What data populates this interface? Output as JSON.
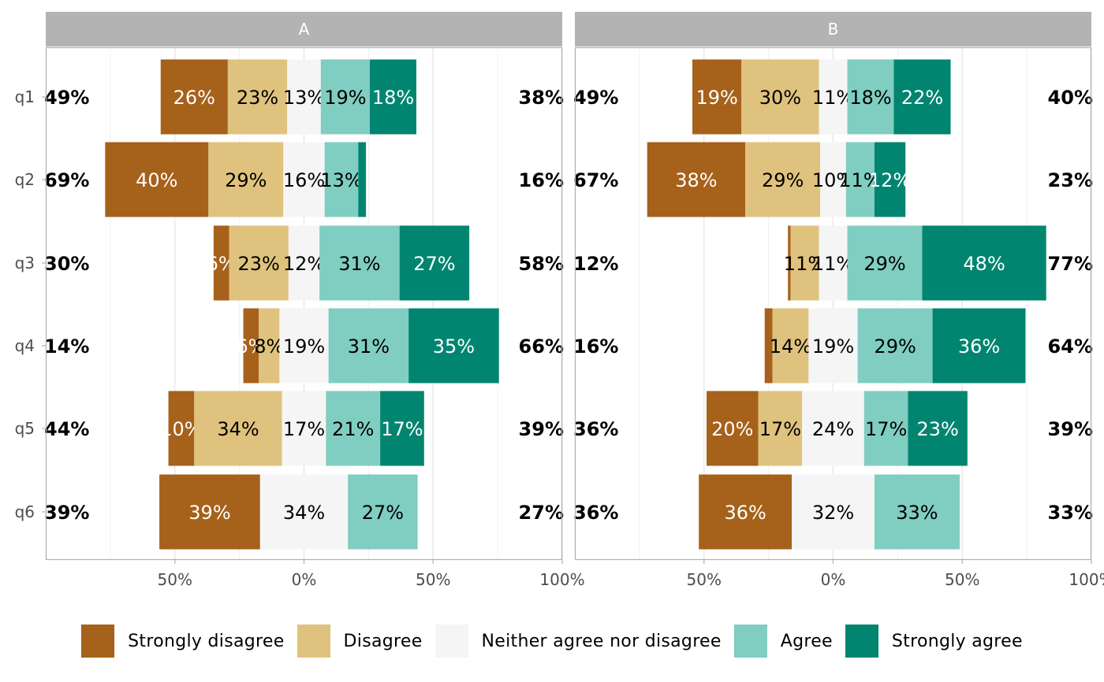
{
  "chart_data": {
    "type": "bar",
    "subtype": "diverging-stacked-likert",
    "levels": [
      "Strongly disagree",
      "Disagree",
      "Neither agree nor disagree",
      "Agree",
      "Strongly agree"
    ],
    "colors": [
      "#A6611A",
      "#DFC27D",
      "#F5F5F5",
      "#80CDC1",
      "#018571"
    ],
    "label_text_colors": [
      "#ffffff",
      "#000000",
      "#000000",
      "#000000",
      "#ffffff"
    ],
    "x_ticks": [
      "50%",
      "0%",
      "50%",
      "100%"
    ],
    "xlim": [
      -100,
      100
    ],
    "grid": true,
    "legend_position": "bottom",
    "panels": [
      {
        "name": "A",
        "rows": [
          {
            "question": "q1",
            "values": [
              26,
              23,
              13,
              19,
              18
            ],
            "labels": [
              "26%",
              "23%",
              "13%",
              "19%",
              "18%"
            ],
            "left_total": "49%",
            "right_total": "38%"
          },
          {
            "question": "q2",
            "values": [
              40,
              29,
              16,
              13,
              3
            ],
            "labels": [
              "40%",
              "29%",
              "16%",
              "13%",
              ""
            ],
            "left_total": "69%",
            "right_total": "16%"
          },
          {
            "question": "q3",
            "values": [
              6,
              23,
              12,
              31,
              27
            ],
            "labels": [
              "6%",
              "23%",
              "12%",
              "31%",
              "27%"
            ],
            "left_total": "30%",
            "right_total": "58%"
          },
          {
            "question": "q4",
            "values": [
              6,
              8,
              19,
              31,
              35
            ],
            "labels": [
              "6%",
              "8%",
              "19%",
              "31%",
              "35%"
            ],
            "left_total": "14%",
            "right_total": "66%"
          },
          {
            "question": "q5",
            "values": [
              10,
              34,
              17,
              21,
              17
            ],
            "labels": [
              "10%",
              "34%",
              "17%",
              "21%",
              "17%"
            ],
            "left_total": "44%",
            "right_total": "39%"
          },
          {
            "question": "q6",
            "values": [
              39,
              0,
              34,
              27,
              0
            ],
            "labels": [
              "39%",
              "",
              "34%",
              "27%",
              ""
            ],
            "left_total": "39%",
            "right_total": "27%"
          }
        ]
      },
      {
        "name": "B",
        "rows": [
          {
            "question": "q1",
            "values": [
              19,
              30,
              11,
              18,
              22
            ],
            "labels": [
              "19%",
              "30%",
              "11%",
              "18%",
              "22%"
            ],
            "left_total": "49%",
            "right_total": "40%"
          },
          {
            "question": "q2",
            "values": [
              38,
              29,
              10,
              11,
              12
            ],
            "labels": [
              "38%",
              "29%",
              "10%",
              "11%",
              "12%"
            ],
            "left_total": "67%",
            "right_total": "23%"
          },
          {
            "question": "q3",
            "values": [
              1,
              11,
              11,
              29,
              48
            ],
            "labels": [
              "",
              "11%",
              "11%",
              "29%",
              "48%"
            ],
            "left_total": "12%",
            "right_total": "77%"
          },
          {
            "question": "q4",
            "values": [
              3,
              14,
              19,
              29,
              36
            ],
            "labels": [
              "",
              "14%",
              "19%",
              "29%",
              "36%"
            ],
            "left_total": "16%",
            "right_total": "64%"
          },
          {
            "question": "q5",
            "values": [
              20,
              17,
              24,
              17,
              23
            ],
            "labels": [
              "20%",
              "17%",
              "24%",
              "17%",
              "23%"
            ],
            "left_total": "36%",
            "right_total": "39%"
          },
          {
            "question": "q6",
            "values": [
              36,
              0,
              32,
              33,
              0
            ],
            "labels": [
              "36%",
              "",
              "32%",
              "33%",
              ""
            ],
            "left_total": "36%",
            "right_total": "33%"
          }
        ]
      }
    ]
  }
}
